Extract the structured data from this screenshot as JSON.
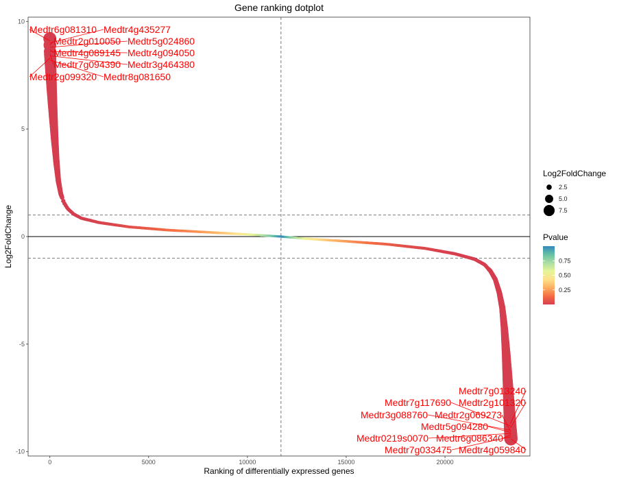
{
  "chart_data": {
    "type": "scatter",
    "title": "Gene ranking dotplot",
    "xlabel": "Ranking of differentially expressed genes",
    "ylabel": "Log2FoldChange",
    "xlim": [
      -1100,
      24300
    ],
    "ylim": [
      -10.2,
      10.2
    ],
    "x_ticks": [
      0,
      5000,
      10000,
      15000,
      20000
    ],
    "y_ticks": [
      -10,
      -5,
      0,
      5,
      10
    ],
    "grid": false,
    "reference_lines": {
      "hline_solid": 0,
      "hline_dashed": [
        1,
        -1
      ],
      "vline_dashed": 11700
    },
    "x_max_rank": 23340,
    "curve_profile": [
      [
        0,
        9.2
      ],
      [
        10,
        8.6
      ],
      [
        30,
        8.1
      ],
      [
        60,
        7.5
      ],
      [
        100,
        6.8
      ],
      [
        160,
        5.8
      ],
      [
        240,
        4.6
      ],
      [
        330,
        3.5
      ],
      [
        430,
        2.6
      ],
      [
        550,
        2.0
      ],
      [
        700,
        1.6
      ],
      [
        900,
        1.3
      ],
      [
        1200,
        1.05
      ],
      [
        1600,
        0.85
      ],
      [
        2500,
        0.65
      ],
      [
        4000,
        0.45
      ],
      [
        6000,
        0.3
      ],
      [
        8000,
        0.2
      ],
      [
        10000,
        0.1
      ],
      [
        11700,
        0.0
      ],
      [
        13000,
        -0.1
      ],
      [
        15000,
        -0.22
      ],
      [
        17000,
        -0.35
      ],
      [
        19000,
        -0.55
      ],
      [
        20500,
        -0.8
      ],
      [
        21500,
        -1.05
      ],
      [
        22000,
        -1.3
      ],
      [
        22300,
        -1.6
      ],
      [
        22550,
        -2.0
      ],
      [
        22750,
        -2.6
      ],
      [
        22900,
        -3.3
      ],
      [
        23000,
        -4.2
      ],
      [
        23100,
        -5.5
      ],
      [
        23180,
        -6.8
      ],
      [
        23250,
        -8.0
      ],
      [
        23300,
        -8.8
      ],
      [
        23340,
        -9.4
      ]
    ],
    "labels_top": [
      {
        "text": "Medtr6g081310",
        "x": 0,
        "y": 9.1
      },
      {
        "text": "Medtr4g435277",
        "x": 0,
        "y": 9.0
      },
      {
        "text": "Medtr2g010050",
        "x": 5,
        "y": 8.9
      },
      {
        "text": "Medtr5g024860",
        "x": 5,
        "y": 8.8
      },
      {
        "text": "Medtr4g089145",
        "x": 10,
        "y": 8.7
      },
      {
        "text": "Medtr4g094050",
        "x": 10,
        "y": 8.6
      },
      {
        "text": "Medtr7g094390",
        "x": 15,
        "y": 8.5
      },
      {
        "text": "Medtr3g464380",
        "x": 15,
        "y": 8.4
      },
      {
        "text": "Medtr2g099320",
        "x": 20,
        "y": 8.3
      },
      {
        "text": "Medtr8g081650",
        "x": 20,
        "y": 8.2
      }
    ],
    "labels_bottom": [
      {
        "text": "Medtr7g013240",
        "x": 23300,
        "y": -8.7
      },
      {
        "text": "Medtr7g117690",
        "x": 23305,
        "y": -8.8
      },
      {
        "text": "Medtr2g101320",
        "x": 23310,
        "y": -8.9
      },
      {
        "text": "Medtr3g088760",
        "x": 23315,
        "y": -9.0
      },
      {
        "text": "Medtr2g069273",
        "x": 23320,
        "y": -9.05
      },
      {
        "text": "Medtr5g094280",
        "x": 23325,
        "y": -9.1
      },
      {
        "text": "Medtr0219s0070",
        "x": 23330,
        "y": -9.15
      },
      {
        "text": "Medtr6g086340",
        "x": 23335,
        "y": -9.2
      },
      {
        "text": "Medtr7g033475",
        "x": 23338,
        "y": -9.3
      },
      {
        "text": "Medtr4g059840",
        "x": 23340,
        "y": -9.4
      }
    ],
    "legend_size": {
      "title": "Log2FoldChange",
      "entries": [
        {
          "label": "2.5",
          "value": 2.5
        },
        {
          "label": "5.0",
          "value": 5.0
        },
        {
          "label": "7.5",
          "value": 7.5
        }
      ]
    },
    "legend_color": {
      "title": "Pvalue",
      "range": [
        0.0,
        1.0
      ],
      "ticks": [
        {
          "label": "0.25",
          "value": 0.25
        },
        {
          "label": "0.50",
          "value": 0.5
        },
        {
          "label": "0.75",
          "value": 0.75
        }
      ],
      "palette": [
        "#d53e4f",
        "#f46d43",
        "#fdae61",
        "#fee08b",
        "#e6f598",
        "#abdda4",
        "#66c2a5",
        "#3288bd"
      ]
    },
    "placement": {
      "labels_top": [
        {
          "lx": 0,
          "ly": 9.6,
          "rx": 0,
          "ry": 9.5
        },
        {
          "lx": 0,
          "ly": 9.6,
          "rx": 0,
          "ry": 9.5
        },
        {
          "lx": 0,
          "ly": 9.6,
          "rx": 0,
          "ry": 9.5
        },
        {
          "lx": 0,
          "ly": 9.6,
          "rx": 0,
          "ry": 9.5
        },
        {
          "lx": 0,
          "ly": 9.6,
          "rx": 0,
          "ry": 9.5
        }
      ]
    }
  }
}
